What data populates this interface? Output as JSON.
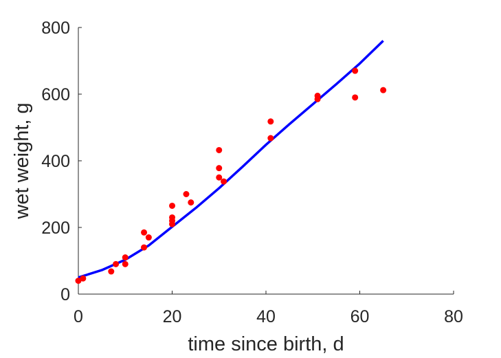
{
  "chart_data": {
    "type": "scatter",
    "title": "",
    "xlabel": "time since birth, d",
    "ylabel": "wet weight, g",
    "xlim": [
      0,
      80
    ],
    "ylim": [
      0,
      800
    ],
    "xticks": [
      "0",
      "20",
      "40",
      "60",
      "80"
    ],
    "yticks": [
      "0",
      "200",
      "400",
      "600",
      "800"
    ],
    "grid": false,
    "legend": "none",
    "series": [
      {
        "kind": "points",
        "color": "#ff0000",
        "points": [
          [
            0,
            40
          ],
          [
            1,
            47
          ],
          [
            7,
            68
          ],
          [
            8,
            90
          ],
          [
            10,
            90
          ],
          [
            10,
            110
          ],
          [
            14,
            140
          ],
          [
            14,
            185
          ],
          [
            15,
            170
          ],
          [
            20,
            210
          ],
          [
            20,
            220
          ],
          [
            20,
            230
          ],
          [
            20,
            265
          ],
          [
            23,
            300
          ],
          [
            24,
            275
          ],
          [
            30,
            350
          ],
          [
            30,
            378
          ],
          [
            30,
            432
          ],
          [
            31,
            338
          ],
          [
            41,
            468
          ],
          [
            41,
            518
          ],
          [
            51,
            585
          ],
          [
            51,
            595
          ],
          [
            59,
            590
          ],
          [
            59,
            670
          ],
          [
            65,
            612
          ]
        ]
      },
      {
        "kind": "line",
        "color": "#0000ff",
        "points": [
          [
            0,
            50
          ],
          [
            5,
            72
          ],
          [
            10,
            103
          ],
          [
            15,
            146
          ],
          [
            20,
            202
          ],
          [
            25,
            258
          ],
          [
            30,
            318
          ],
          [
            35,
            382
          ],
          [
            40,
            448
          ],
          [
            45,
            510
          ],
          [
            50,
            570
          ],
          [
            55,
            630
          ],
          [
            60,
            692
          ],
          [
            65,
            760
          ]
        ]
      }
    ]
  }
}
